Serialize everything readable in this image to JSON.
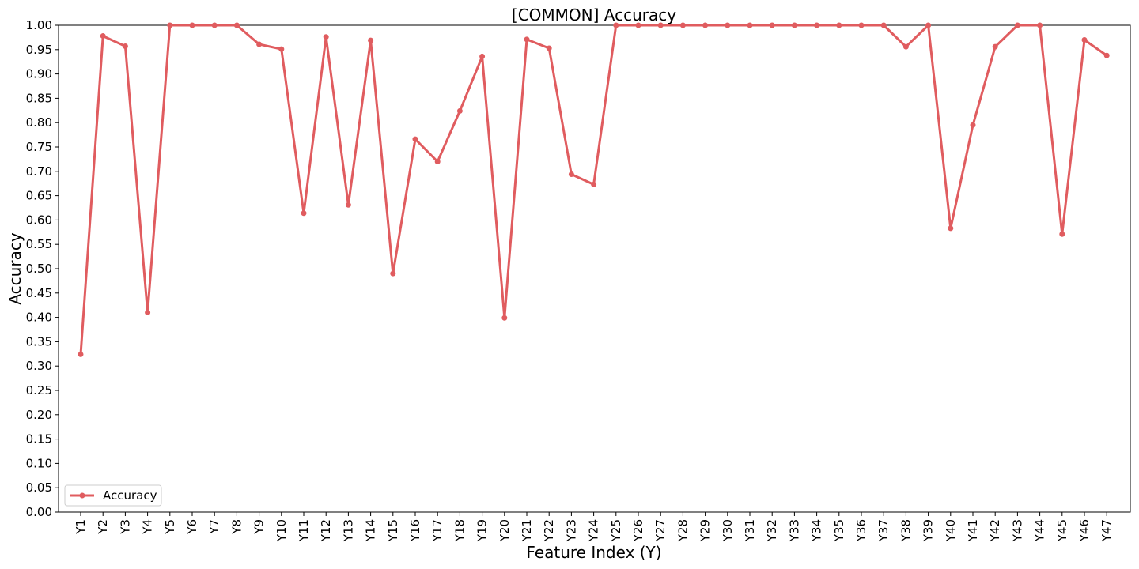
{
  "chart_data": {
    "type": "line",
    "title": "[COMMON] Accuracy",
    "xlabel": "Feature Index (Y)",
    "ylabel": "Accuracy",
    "ylim": [
      0,
      1
    ],
    "yticks": [
      "0.00",
      "0.05",
      "0.10",
      "0.15",
      "0.20",
      "0.25",
      "0.30",
      "0.35",
      "0.40",
      "0.45",
      "0.50",
      "0.55",
      "0.60",
      "0.65",
      "0.70",
      "0.75",
      "0.80",
      "0.85",
      "0.90",
      "0.95",
      "1.00"
    ],
    "grid": false,
    "legend_position": "bottom-left",
    "categories": [
      "Y1",
      "Y2",
      "Y3",
      "Y4",
      "Y5",
      "Y6",
      "Y7",
      "Y8",
      "Y9",
      "Y10",
      "Y11",
      "Y12",
      "Y13",
      "Y14",
      "Y15",
      "Y16",
      "Y17",
      "Y18",
      "Y19",
      "Y20",
      "Y21",
      "Y22",
      "Y23",
      "Y24",
      "Y25",
      "Y26",
      "Y27",
      "Y28",
      "Y29",
      "Y30",
      "Y31",
      "Y32",
      "Y33",
      "Y34",
      "Y35",
      "Y36",
      "Y37",
      "Y38",
      "Y39",
      "Y40",
      "Y41",
      "Y42",
      "Y43",
      "Y44",
      "Y45",
      "Y46",
      "Y47"
    ],
    "series": [
      {
        "name": "Accuracy",
        "color": "#e05c5f",
        "values": [
          0.324,
          0.978,
          0.957,
          0.41,
          1.0,
          1.0,
          1.0,
          1.0,
          0.961,
          0.951,
          0.614,
          0.976,
          0.631,
          0.969,
          0.49,
          0.766,
          0.72,
          0.824,
          0.936,
          0.399,
          0.971,
          0.953,
          0.694,
          0.673,
          1.0,
          1.0,
          1.0,
          1.0,
          1.0,
          1.0,
          1.0,
          1.0,
          1.0,
          1.0,
          1.0,
          1.0,
          1.0,
          0.956,
          1.0,
          0.583,
          0.795,
          0.956,
          1.0,
          1.0,
          0.571,
          0.97,
          0.938
        ]
      }
    ]
  }
}
